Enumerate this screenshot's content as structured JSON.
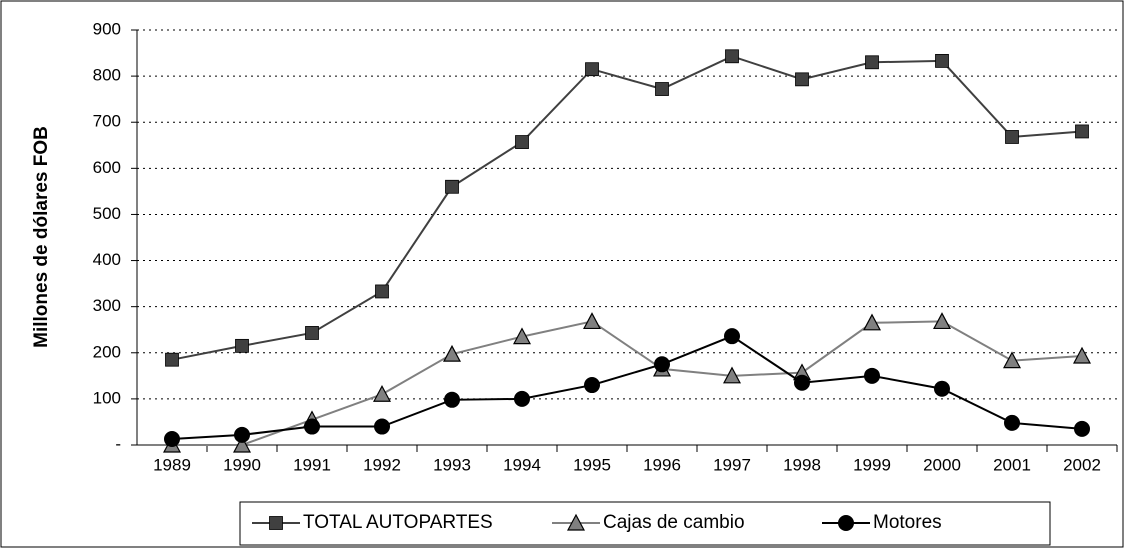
{
  "chart_data": {
    "type": "line",
    "y_label": "Millones de dólares FOB",
    "categories": [
      "1989",
      "1990",
      "1991",
      "1992",
      "1993",
      "1994",
      "1995",
      "1996",
      "1997",
      "1998",
      "1999",
      "2000",
      "2001",
      "2002"
    ],
    "series": [
      {
        "name": "TOTAL AUTOPARTES",
        "color": "#404040",
        "marker": "square",
        "values": [
          185,
          215,
          243,
          333,
          560,
          657,
          815,
          772,
          843,
          793,
          830,
          833,
          668,
          680
        ]
      },
      {
        "name": "Cajas de cambio",
        "color": "#808080",
        "marker": "triangle",
        "values": [
          0,
          0,
          55,
          110,
          197,
          235,
          268,
          165,
          150,
          157,
          265,
          268,
          183,
          193
        ]
      },
      {
        "name": "Motores",
        "color": "#000000",
        "marker": "circle",
        "values": [
          13,
          22,
          40,
          40,
          98,
          100,
          130,
          175,
          236,
          135,
          150,
          122,
          48,
          35
        ]
      }
    ],
    "ylim": [
      0,
      900
    ],
    "yticks": [
      {
        "value": 0,
        "label": "-"
      },
      100,
      200,
      300,
      400,
      500,
      600,
      700,
      800,
      900
    ],
    "grid": true,
    "legend": "bottom"
  }
}
